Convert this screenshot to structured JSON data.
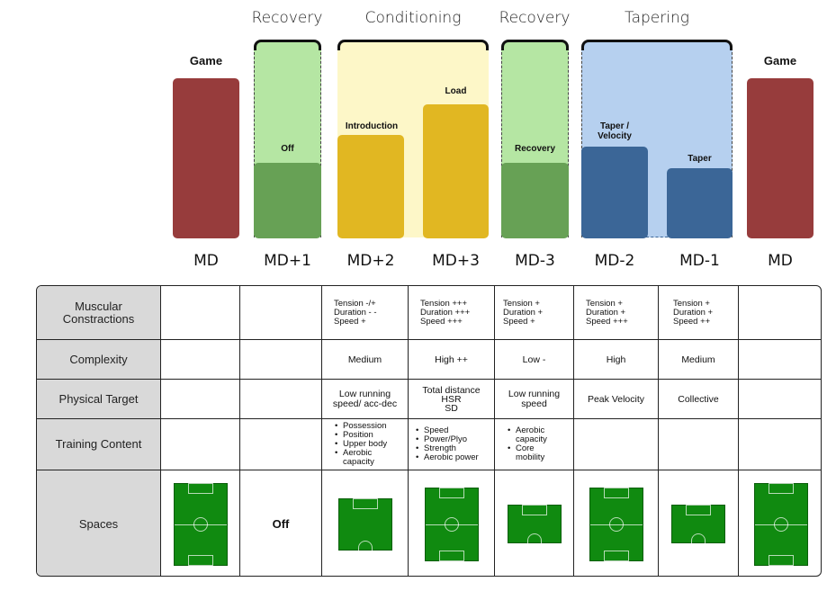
{
  "phases": [
    {
      "label": "Recovery"
    },
    {
      "label": "Conditioning"
    },
    {
      "label": "Recovery"
    },
    {
      "label": "Tapering"
    }
  ],
  "game_labels": [
    "Game",
    "Game"
  ],
  "bar_labels": {
    "off": "Off",
    "introduction": "Introduction",
    "load": "Load",
    "recovery": "Recovery",
    "taper_velocity_1": "Taper /",
    "taper_velocity_2": "Velocity",
    "taper": "Taper"
  },
  "colors": {
    "game": "#973c3c",
    "recovery_bg": "#b5e6a3",
    "recovery_bar": "#67a155",
    "conditioning_bg": "#fdf7c8",
    "conditioning_bar": "#e1b722",
    "tapering_bg": "#b6d0ef",
    "tapering_bar": "#3b6697",
    "row_header": "#d9d9d9",
    "pitch": "#108a10"
  },
  "days": [
    "MD",
    "MD+1",
    "MD+2",
    "MD+3",
    "MD-3",
    "MD-2",
    "MD-1",
    "MD"
  ],
  "table": {
    "row_headers": {
      "muscular_1": "Muscular",
      "muscular_2": "Constractions",
      "complexity": "Complexity",
      "physical": "Physical Target",
      "training": "Training Content",
      "spaces": "Spaces"
    },
    "muscular": {
      "md2": [
        "Tension -/+",
        "Duration - -",
        "Speed +"
      ],
      "md3": [
        "Tension +++",
        "Duration +++",
        "Speed +++"
      ],
      "mdm3": [
        "Tension +",
        "Duration +",
        "Speed +"
      ],
      "mdm2": [
        "Tension +",
        "Duration +",
        "Speed +++"
      ],
      "mdm1": [
        "Tension +",
        "Duration +",
        "Speed ++"
      ]
    },
    "complexity": {
      "md2": "Medium",
      "md3": "High ++",
      "mdm3": "Low -",
      "mdm2": "High",
      "mdm1": "Medium"
    },
    "physical": {
      "md2": [
        "Low running",
        "speed/ acc-dec"
      ],
      "md3": [
        "Total distance",
        "HSR",
        "SD"
      ],
      "mdm3": [
        "Low running",
        "speed"
      ],
      "mdm2": "Peak Velocity",
      "mdm1": "Collective"
    },
    "training": {
      "md2": [
        "Possession",
        "Position",
        "Upper body",
        "Aerobic",
        "capacity"
      ],
      "md3": [
        "Speed",
        "Power/Plyo",
        "Strength",
        "Aerobic power"
      ],
      "mdm3": [
        "Aerobic",
        "capacity",
        "Core",
        "mobility"
      ]
    },
    "spaces_off": "Off"
  }
}
